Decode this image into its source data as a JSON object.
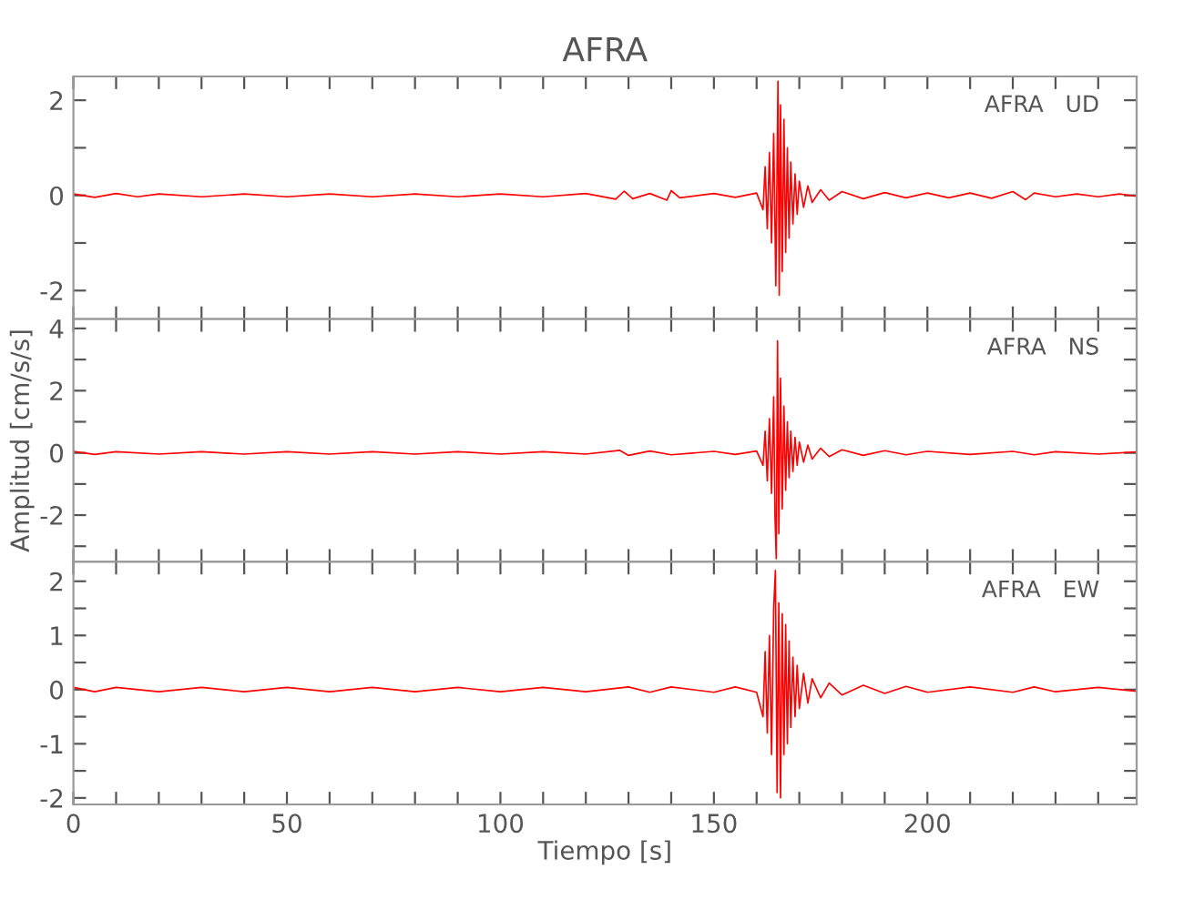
{
  "chart_data": [
    {
      "type": "line",
      "title": "AFRA",
      "annotations": [
        "AFRA   UD"
      ],
      "tick_labels": "y",
      "grid": false,
      "xlim": [
        0,
        249
      ],
      "xticks": [
        0,
        {
          "value": 10,
          "label": null
        },
        {
          "value": 20,
          "label": null
        },
        {
          "value": 30,
          "label": null
        },
        {
          "value": 40,
          "label": null
        },
        50,
        {
          "value": 60,
          "label": null
        },
        {
          "value": 70,
          "label": null
        },
        {
          "value": 80,
          "label": null
        },
        {
          "value": 90,
          "label": null
        },
        100,
        {
          "value": 110,
          "label": null
        },
        {
          "value": 120,
          "label": null
        },
        {
          "value": 130,
          "label": null
        },
        {
          "value": 140,
          "label": null
        },
        150,
        {
          "value": 160,
          "label": null
        },
        {
          "value": 170,
          "label": null
        },
        {
          "value": 180,
          "label": null
        },
        {
          "value": 190,
          "label": null
        },
        200,
        {
          "value": 210,
          "label": null
        },
        {
          "value": 220,
          "label": null
        },
        {
          "value": 230,
          "label": null
        },
        {
          "value": 240,
          "label": null
        }
      ],
      "ylim": [
        -2.6,
        2.5
      ],
      "yticks": [
        -2,
        {
          "value": -1,
          "label": null
        },
        0,
        {
          "value": 1,
          "label": null
        },
        2
      ],
      "series": [
        {
          "color": "#ff0000",
          "x": [
            0,
            5,
            10,
            15,
            20,
            30,
            40,
            50,
            60,
            70,
            80,
            90,
            100,
            110,
            120,
            127,
            129,
            131,
            135,
            139,
            140,
            142,
            150,
            155,
            160,
            161.5,
            162,
            162.5,
            163,
            163.5,
            164,
            164.5,
            165,
            165.3,
            165.6,
            166,
            166.4,
            166.8,
            167.2,
            167.6,
            168,
            168.5,
            169,
            169.5,
            170,
            171,
            172,
            173,
            175,
            177,
            180,
            185,
            190,
            195,
            200,
            205,
            210,
            215,
            220,
            223,
            225,
            230,
            235,
            240,
            245,
            249
          ],
          "values": [
            0.03,
            -0.04,
            0.04,
            -0.03,
            0.03,
            -0.03,
            0.03,
            -0.03,
            0.03,
            -0.03,
            0.03,
            -0.03,
            0.03,
            -0.03,
            0.04,
            -0.08,
            0.09,
            -0.07,
            0.04,
            -0.1,
            0.1,
            -0.05,
            0.04,
            -0.04,
            0.05,
            -0.3,
            0.6,
            -0.7,
            0.9,
            -1.0,
            1.3,
            -1.9,
            2.4,
            -2.1,
            1.9,
            -1.6,
            1.6,
            -1.2,
            1.0,
            -0.9,
            0.7,
            -0.6,
            0.45,
            -0.4,
            0.3,
            -0.25,
            0.2,
            -0.15,
            0.12,
            -0.1,
            0.08,
            -0.07,
            0.06,
            -0.05,
            0.05,
            -0.05,
            0.05,
            -0.06,
            0.08,
            -0.09,
            0.05,
            -0.03,
            0.03,
            -0.03,
            0.03,
            -0.02
          ]
        }
      ]
    },
    {
      "type": "line",
      "annotations": [
        "AFRA   NS"
      ],
      "ylabel": "Amplitud [cm/s/s]",
      "tick_labels": "y",
      "grid": false,
      "xlim": [
        0,
        249
      ],
      "xticks": [
        0,
        {
          "value": 10,
          "label": null
        },
        {
          "value": 20,
          "label": null
        },
        {
          "value": 30,
          "label": null
        },
        {
          "value": 40,
          "label": null
        },
        50,
        {
          "value": 60,
          "label": null
        },
        {
          "value": 70,
          "label": null
        },
        {
          "value": 80,
          "label": null
        },
        {
          "value": 90,
          "label": null
        },
        100,
        {
          "value": 110,
          "label": null
        },
        {
          "value": 120,
          "label": null
        },
        {
          "value": 130,
          "label": null
        },
        {
          "value": 140,
          "label": null
        },
        150,
        {
          "value": 160,
          "label": null
        },
        {
          "value": 170,
          "label": null
        },
        {
          "value": 180,
          "label": null
        },
        {
          "value": 190,
          "label": null
        },
        200,
        {
          "value": 210,
          "label": null
        },
        {
          "value": 220,
          "label": null
        },
        {
          "value": 230,
          "label": null
        },
        {
          "value": 240,
          "label": null
        }
      ],
      "ylim": [
        -3.5,
        4.3
      ],
      "yticks": [
        {
          "value": -3,
          "label": null
        },
        -2,
        {
          "value": -1,
          "label": null
        },
        0,
        {
          "value": 1,
          "label": null
        },
        2,
        {
          "value": 3,
          "label": null
        },
        4
      ],
      "series": [
        {
          "color": "#ff0000",
          "x": [
            0,
            5,
            10,
            20,
            30,
            40,
            50,
            60,
            70,
            80,
            90,
            100,
            110,
            120,
            128,
            130,
            135,
            140,
            150,
            155,
            160,
            161.5,
            162,
            162.5,
            163,
            163.5,
            164,
            164.3,
            164.6,
            164.9,
            165.2,
            165.6,
            166,
            166.4,
            166.8,
            167.2,
            167.6,
            168,
            168.5,
            169,
            169.5,
            170,
            171,
            172,
            173,
            175,
            177,
            180,
            185,
            190,
            195,
            200,
            210,
            220,
            225,
            230,
            240,
            249
          ],
          "values": [
            0.05,
            -0.05,
            0.04,
            -0.04,
            0.04,
            -0.04,
            0.04,
            -0.04,
            0.04,
            -0.04,
            0.04,
            -0.04,
            0.04,
            -0.04,
            0.08,
            -0.08,
            0.06,
            -0.06,
            0.05,
            -0.05,
            0.06,
            -0.4,
            0.7,
            -0.9,
            1.1,
            -1.3,
            1.8,
            -2.0,
            -3.4,
            3.6,
            -2.6,
            2.4,
            -1.8,
            1.5,
            -1.2,
            1.0,
            -0.8,
            0.7,
            -0.6,
            0.5,
            -0.4,
            0.35,
            -0.3,
            0.25,
            -0.2,
            0.15,
            -0.12,
            0.1,
            -0.08,
            0.07,
            -0.06,
            0.05,
            -0.05,
            0.05,
            -0.06,
            0.04,
            -0.04,
            0.03
          ]
        }
      ]
    },
    {
      "type": "line",
      "annotations": [
        "AFRA   EW"
      ],
      "xlabel": "Tiempo [s]",
      "grid": false,
      "xlim": [
        0,
        249
      ],
      "xticks": [
        0,
        {
          "value": 10,
          "label": null
        },
        {
          "value": 20,
          "label": null
        },
        {
          "value": 30,
          "label": null
        },
        {
          "value": 40,
          "label": null
        },
        50,
        {
          "value": 60,
          "label": null
        },
        {
          "value": 70,
          "label": null
        },
        {
          "value": 80,
          "label": null
        },
        {
          "value": 90,
          "label": null
        },
        100,
        {
          "value": 110,
          "label": null
        },
        {
          "value": 120,
          "label": null
        },
        {
          "value": 130,
          "label": null
        },
        {
          "value": 140,
          "label": null
        },
        150,
        {
          "value": 160,
          "label": null
        },
        {
          "value": 170,
          "label": null
        },
        {
          "value": 180,
          "label": null
        },
        {
          "value": 190,
          "label": null
        },
        200,
        {
          "value": 210,
          "label": null
        },
        {
          "value": 220,
          "label": null
        },
        {
          "value": 230,
          "label": null
        },
        {
          "value": 240,
          "label": null
        }
      ],
      "ylim": [
        -2.12,
        2.36
      ],
      "yticks": [
        -2,
        {
          "value": -1.5,
          "label": null
        },
        -1,
        {
          "value": -0.5,
          "label": null
        },
        0,
        {
          "value": 0.5,
          "label": null
        },
        1,
        {
          "value": 1.5,
          "label": null
        },
        2
      ],
      "series": [
        {
          "color": "#ff0000",
          "x": [
            0,
            5,
            10,
            20,
            30,
            40,
            50,
            60,
            70,
            80,
            90,
            100,
            110,
            120,
            130,
            135,
            140,
            150,
            155,
            160,
            161.5,
            162,
            162.5,
            163,
            163.5,
            164,
            164.4,
            164.8,
            165.2,
            165.6,
            166,
            166.4,
            166.8,
            167.2,
            167.6,
            168,
            168.5,
            169,
            169.5,
            170,
            171,
            172,
            173,
            175,
            177,
            180,
            185,
            190,
            195,
            200,
            210,
            220,
            225,
            230,
            240,
            249
          ],
          "values": [
            0.04,
            -0.04,
            0.04,
            -0.04,
            0.04,
            -0.04,
            0.04,
            -0.04,
            0.04,
            -0.04,
            0.04,
            -0.04,
            0.04,
            -0.04,
            0.05,
            -0.05,
            0.05,
            -0.05,
            0.05,
            -0.05,
            -0.5,
            0.7,
            -0.8,
            1.0,
            -1.2,
            1.5,
            2.2,
            -1.9,
            1.6,
            -2.0,
            1.4,
            -1.2,
            1.2,
            -1.0,
            0.9,
            -0.7,
            0.6,
            -0.5,
            0.45,
            -0.35,
            0.3,
            -0.25,
            0.2,
            -0.15,
            0.12,
            -0.1,
            0.08,
            -0.07,
            0.06,
            -0.05,
            0.05,
            -0.05,
            0.05,
            -0.04,
            0.04,
            -0.03
          ]
        }
      ]
    }
  ]
}
